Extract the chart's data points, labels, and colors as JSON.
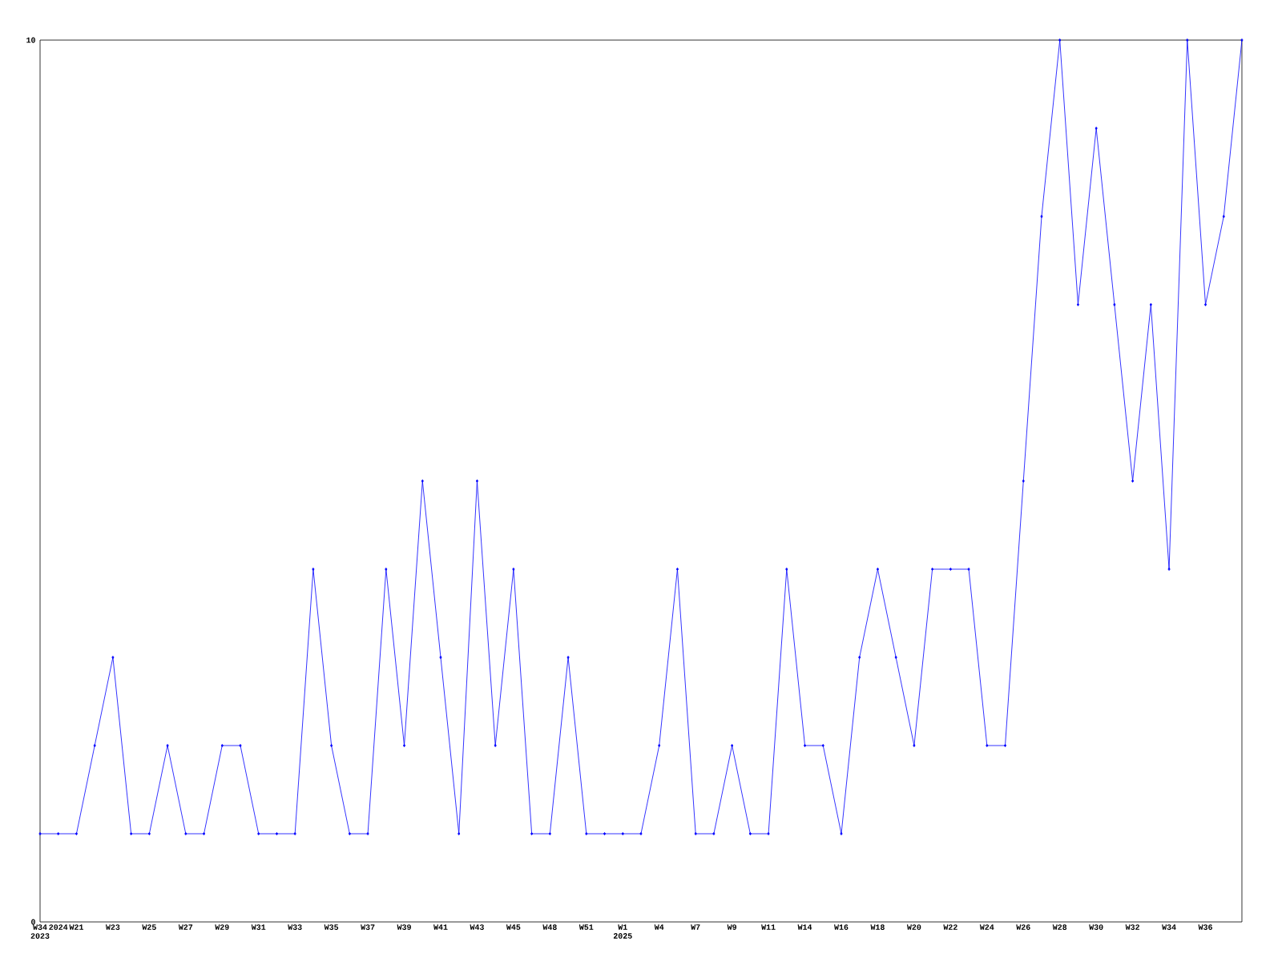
{
  "chart_data": {
    "type": "line",
    "categories": [
      "W34 2023",
      "2024",
      "W21",
      null,
      "W23",
      null,
      "W25",
      null,
      "W27",
      null,
      "W29",
      null,
      "W31",
      null,
      "W33",
      null,
      "W35",
      null,
      "W37",
      null,
      "W39",
      null,
      "W41",
      null,
      "W43",
      null,
      "W45",
      null,
      "W48",
      null,
      "W51",
      null,
      "W1 2025",
      null,
      "W4",
      null,
      "W7",
      null,
      "W9",
      null,
      "W11",
      null,
      "W14",
      null,
      "W16",
      null,
      "W18",
      null,
      "W20",
      null,
      "W22",
      null,
      "W24",
      null,
      "W26",
      null,
      "W28",
      null,
      "W30",
      null,
      "W32",
      null,
      "W34",
      null,
      "W36",
      null,
      null
    ],
    "series": [
      {
        "color": "#0000ff",
        "values": [
          1,
          1,
          1,
          2,
          3,
          1,
          1,
          2,
          1,
          1,
          2,
          2,
          1,
          1,
          1,
          4,
          2,
          1,
          1,
          4,
          2,
          5,
          3,
          1,
          5,
          2,
          4,
          1,
          1,
          3,
          1,
          1,
          1,
          1,
          2,
          4,
          1,
          1,
          2,
          1,
          1,
          4,
          2,
          2,
          1,
          3,
          4,
          3,
          2,
          4,
          4,
          4,
          2,
          2,
          5,
          8,
          10,
          7,
          9,
          7,
          5,
          7,
          4,
          10,
          7,
          8,
          10
        ]
      }
    ],
    "ylim": [
      0,
      10
    ],
    "yticks": [
      0,
      10
    ],
    "grid": false,
    "marker": "diamond",
    "line_style": "solid"
  }
}
